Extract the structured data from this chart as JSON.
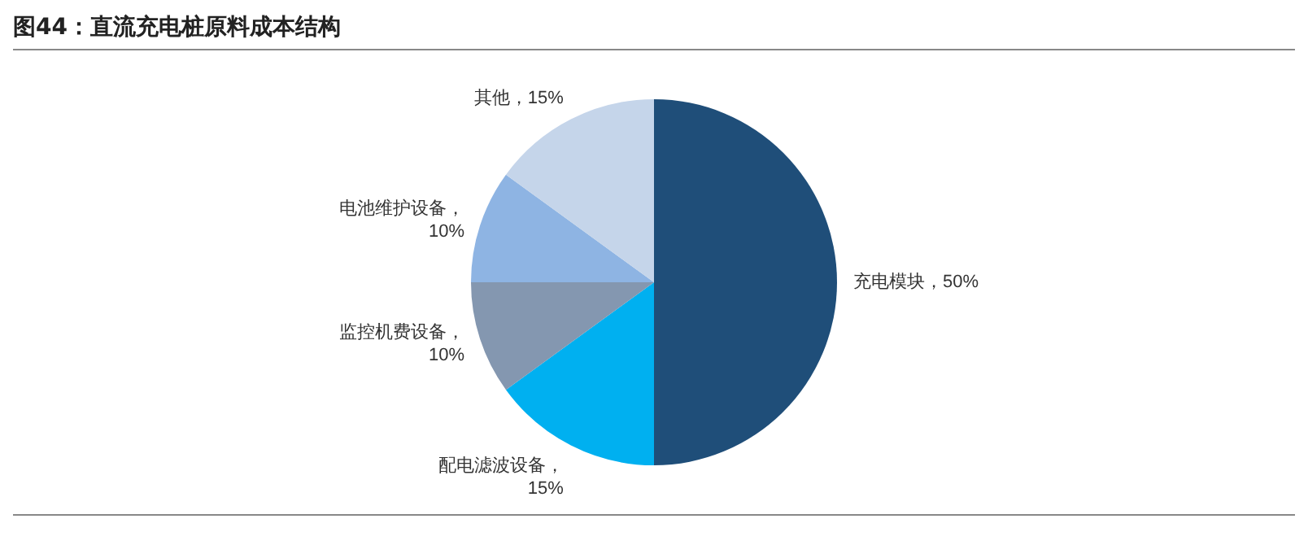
{
  "chart_data": {
    "type": "pie",
    "title": "图44：直流充电桩原料成本结构",
    "categories": [
      "充电模块",
      "配电滤波设备",
      "监控机费设备",
      "电池维护设备",
      "其他"
    ],
    "values": [
      50,
      15,
      10,
      10,
      15
    ],
    "colors": [
      "#1f4e79",
      "#00b0f0",
      "#8497b0",
      "#8eb4e3",
      "#c5d5ea"
    ],
    "value_labels": [
      "，50%",
      "，15%",
      "，10%",
      "，10%",
      "，15%"
    ],
    "legend": false
  }
}
